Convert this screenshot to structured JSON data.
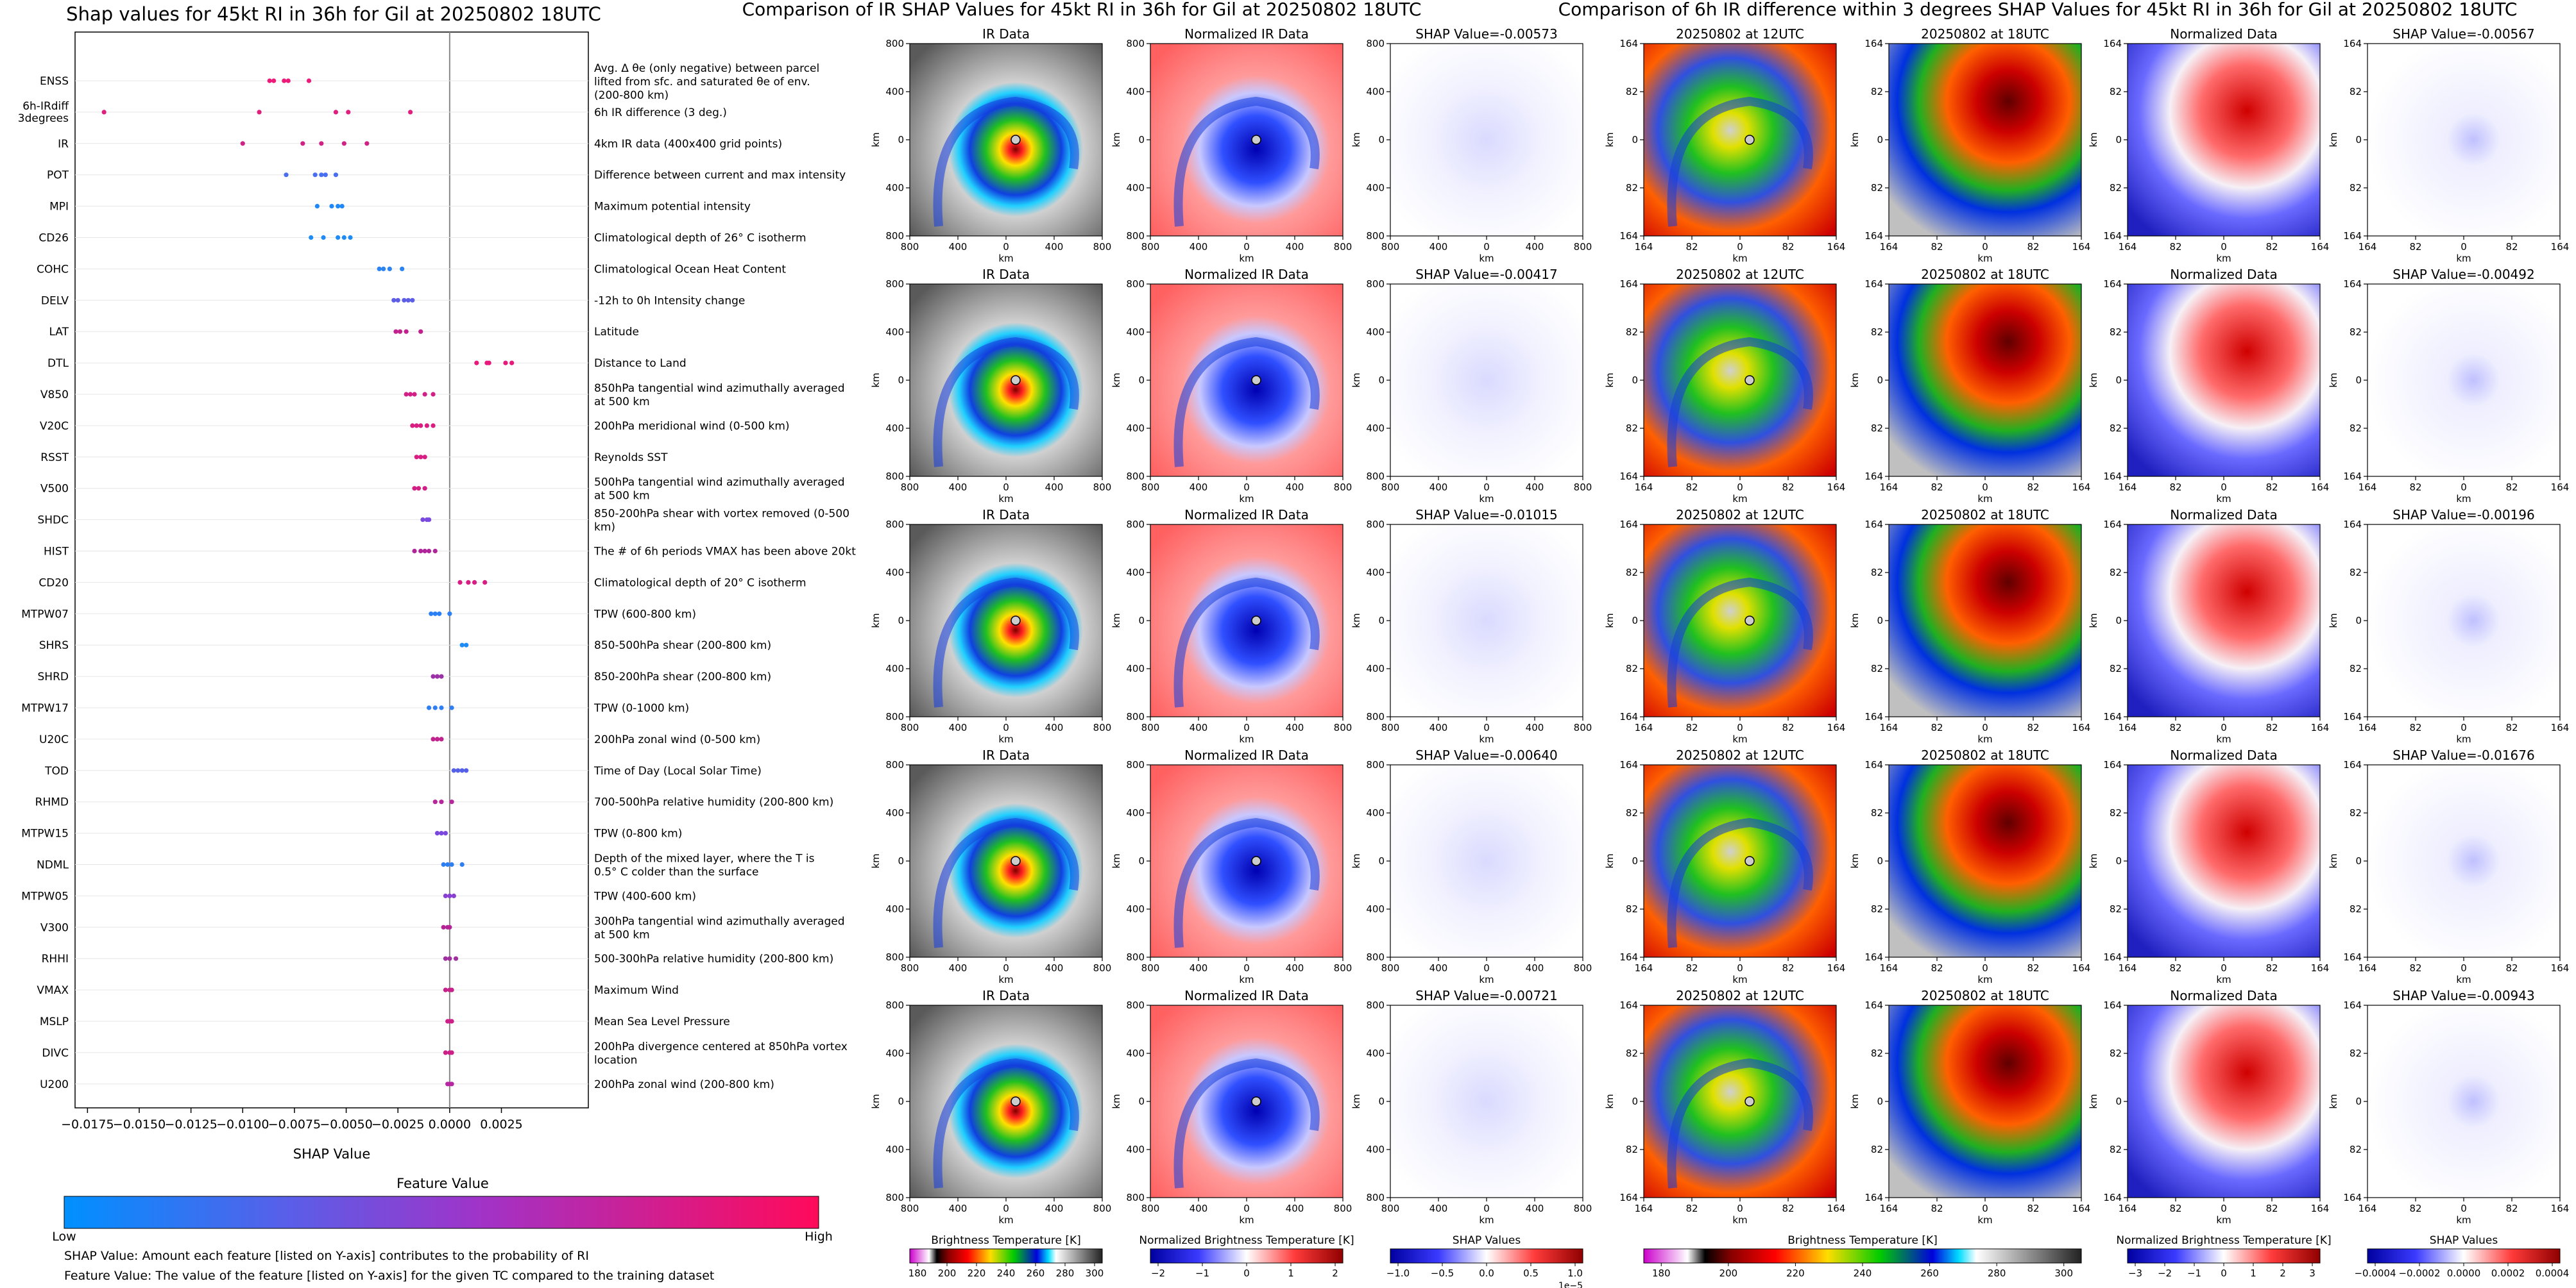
{
  "left_chart": {
    "title": "Shap values for 45kt RI in 36h for Gil at 20250802 18UTC",
    "xlabel": "SHAP Value",
    "feature_names": [
      "ENSS",
      "6h-IRdiff 3degrees",
      "IR",
      "POT",
      "MPI",
      "CD26",
      "COHC",
      "DELV",
      "LAT",
      "DTL",
      "V850",
      "V20C",
      "RSST",
      "V500",
      "SHDC",
      "HIST",
      "CD20",
      "MTPW07",
      "SHRS",
      "SHRD",
      "MTPW17",
      "U20C",
      "TOD",
      "RHMD",
      "MTPW15",
      "NDML",
      "MTPW05",
      "V300",
      "RHHI",
      "VMAX",
      "MSLP",
      "DIVC",
      "U200"
    ],
    "feature_descriptions": [
      "Avg. Δ θe (only negative) between parcel lifted from sfc. and saturated θe of env. (200-800 km)",
      "6h IR difference (3 deg.)",
      "4km IR data (400x400 grid points)",
      "Difference between current and max intensity",
      "Maximum potential intensity",
      "Climatological depth of 26° C isotherm",
      "Climatological Ocean Heat Content",
      "-12h to 0h Intensity change",
      "Latitude",
      "Distance to Land",
      "850hPa tangential wind azimuthally averaged at 500 km",
      "200hPa meridional wind (0-500 km)",
      "Reynolds SST",
      "500hPa tangential wind azimuthally averaged at 500 km",
      "850-200hPa shear with vortex removed (0-500 km)",
      "The # of 6h periods VMAX has been above 20kt",
      "Climatological depth of 20° C isotherm",
      "TPW (600-800 km)",
      "850-500hPa shear (200-800 km)",
      "850-200hPa shear (200-800 km)",
      "TPW (0-1000 km)",
      "200hPa zonal wind (0-500 km)",
      "Time of Day (Local Solar Time)",
      "700-500hPa relative humidity (200-800 km)",
      "TPW (0-800 km)",
      "Depth of the mixed layer, where the T is 0.5° C colder than the surface",
      "TPW (400-600 km)",
      "300hPa tangential wind azimuthally averaged at 500 km",
      "500-300hPa relative humidity (200-800 km)",
      "Maximum Wind",
      "Mean Sea Level Pressure",
      "200hPa divergence centered at 850hPa vortex location",
      "200hPa zonal wind (200-800 km)"
    ],
    "x_ticks": [
      "−0.0175",
      "−0.0150",
      "−0.0125",
      "−0.0100",
      "−0.0075",
      "−0.0050",
      "−0.0025",
      "0.0000",
      "0.0025"
    ],
    "legend_title": "Feature Value",
    "legend_low": "Low",
    "legend_high": "High",
    "footnote_1": "SHAP Value: Amount each feature [listed on Y-axis] contributes to the probability of RI",
    "footnote_2": "Feature Value: The value of the feature [listed on Y-axis] for the given TC compared to the training dataset"
  },
  "middle_panel": {
    "suptitle": "Comparison of IR SHAP Values for 45kt RI in 36h for Gil at 20250802 18UTC",
    "col_titles": [
      "IR Data",
      "Normalized IR Data"
    ],
    "shap_titles": [
      "SHAP Value=-0.00573",
      "SHAP Value=-0.00417",
      "SHAP Value=-0.01015",
      "SHAP Value=-0.00640",
      "SHAP Value=-0.00721"
    ],
    "axis_label": "km",
    "y_ticks": [
      "800",
      "400",
      "0",
      "400",
      "800"
    ],
    "x_ticks": [
      "800",
      "400",
      "0",
      "400",
      "800"
    ],
    "cb1_label": "Brightness Temperature [K]",
    "cb1_ticks": [
      "180",
      "200",
      "220",
      "240",
      "260",
      "280",
      "300"
    ],
    "cb2_label": "Normalized Brightness Temperature [K]",
    "cb2_ticks": [
      "−2",
      "−1",
      "0",
      "1",
      "2"
    ],
    "cb3_label": "SHAP Values",
    "cb3_ticks": [
      "−1.0",
      "−0.5",
      "0.0",
      "0.5",
      "1.0"
    ],
    "cb3_exponent": "1e−5"
  },
  "right_panel": {
    "suptitle": "Comparison of 6h IR difference within 3 degrees SHAP Values for 45kt RI in 36h for Gil at 20250802 18UTC",
    "col_titles": [
      "20250802 at 12UTC",
      "20250802 at 18UTC",
      "Normalized Data"
    ],
    "shap_titles": [
      "SHAP Value=-0.00567",
      "SHAP Value=-0.00492",
      "SHAP Value=-0.00196",
      "SHAP Value=-0.01676",
      "SHAP Value=-0.00943"
    ],
    "axis_label": "km",
    "y_ticks": [
      "164",
      "82",
      "0",
      "82",
      "164"
    ],
    "x_ticks": [
      "164",
      "82",
      "0",
      "82",
      "164"
    ],
    "cb1_label": "Brightness Temperature [K]",
    "cb1_ticks": [
      "180",
      "200",
      "220",
      "240",
      "260",
      "280",
      "300"
    ],
    "cb2_label": "Normalized Brightness Temperature [K]",
    "cb2_ticks": [
      "−3",
      "−2",
      "−1",
      "0",
      "1",
      "2",
      "3"
    ],
    "cb3_label": "SHAP Values",
    "cb3_ticks": [
      "−0.0004",
      "−0.0002",
      "0.0000",
      "0.0002",
      "0.0004"
    ]
  },
  "chart_data": [
    {
      "type": "scatter",
      "title": "Shap values for 45kt RI in 36h for Gil at 20250802 18UTC",
      "xlabel": "SHAP Value",
      "xlim": [
        -0.0181,
        0.0067
      ],
      "grid": false,
      "legend": "colorbar below plot",
      "series": [
        {
          "feature": "ENSS",
          "x": [
            -0.0087,
            -0.0085,
            -0.008,
            -0.0078,
            -0.0068
          ],
          "color": "#ee1a7a"
        },
        {
          "feature": "6h-IRdiff 3degrees",
          "x": [
            -0.0167,
            -0.0092,
            -0.0055,
            -0.0049,
            -0.0019
          ],
          "color": "#e0207f"
        },
        {
          "feature": "IR",
          "x": [
            -0.01,
            -0.0071,
            -0.0062,
            -0.0051,
            -0.004
          ],
          "color": "#cf2285"
        },
        {
          "feature": "POT",
          "x": [
            -0.0079,
            -0.0065,
            -0.0062,
            -0.006,
            -0.0055
          ],
          "color": "#4a6ef0"
        },
        {
          "feature": "MPI",
          "x": [
            -0.0064,
            -0.0057,
            -0.0054,
            -0.0052
          ],
          "color": "#1e88f6"
        },
        {
          "feature": "CD26",
          "x": [
            -0.0067,
            -0.0061,
            -0.0054,
            -0.0051,
            -0.0048
          ],
          "color": "#1e8cf5"
        },
        {
          "feature": "COHC",
          "x": [
            -0.0034,
            -0.0032,
            -0.0029,
            -0.0023
          ],
          "color": "#2b84f2"
        },
        {
          "feature": "DELV",
          "x": [
            -0.0027,
            -0.0025,
            -0.0022,
            -0.002,
            -0.0018
          ],
          "color": "#5d5ee6"
        },
        {
          "feature": "LAT",
          "x": [
            -0.0026,
            -0.0024,
            -0.0021,
            -0.0014
          ],
          "color": "#c2208c"
        },
        {
          "feature": "DTL",
          "x": [
            0.0013,
            0.0018,
            0.0019,
            0.0027,
            0.003
          ],
          "color": "#e71a7c"
        },
        {
          "feature": "V850",
          "x": [
            -0.0021,
            -0.0019,
            -0.0017,
            -0.0012,
            -0.0008
          ],
          "color": "#d21f86"
        },
        {
          "feature": "V20C",
          "x": [
            -0.0018,
            -0.0016,
            -0.0014,
            -0.0011,
            -0.0008
          ],
          "color": "#d91d82"
        },
        {
          "feature": "RSST",
          "x": [
            -0.0016,
            -0.0014,
            -0.0012
          ],
          "color": "#d81d83"
        },
        {
          "feature": "V500",
          "x": [
            -0.0017,
            -0.0015,
            -0.0012
          ],
          "color": "#d21f86"
        },
        {
          "feature": "SHDC",
          "x": [
            -0.0013,
            -0.0011,
            -0.001
          ],
          "color": "#7a4ae0"
        },
        {
          "feature": "HIST",
          "x": [
            -0.0017,
            -0.0014,
            -0.0012,
            -0.001,
            -0.0007
          ],
          "color": "#b0269a"
        },
        {
          "feature": "CD20",
          "x": [
            0.0005,
            0.0009,
            0.0012,
            0.0017
          ],
          "color": "#d91d82"
        },
        {
          "feature": "MTPW07",
          "x": [
            -0.0009,
            -0.0007,
            -0.0005,
            0.0
          ],
          "color": "#2a80f4"
        },
        {
          "feature": "SHRS",
          "x": [
            0.0006,
            0.0008
          ],
          "color": "#1e8cf6"
        },
        {
          "feature": "SHRD",
          "x": [
            -0.0008,
            -0.0006,
            -0.0004
          ],
          "color": "#9a32a6"
        },
        {
          "feature": "MTPW17",
          "x": [
            -0.001,
            -0.0007,
            -0.0004,
            0.0001
          ],
          "color": "#2f7ef2"
        },
        {
          "feature": "U20C",
          "x": [
            -0.0008,
            -0.0006,
            -0.0004
          ],
          "color": "#c0238d"
        },
        {
          "feature": "TOD",
          "x": [
            0.0002,
            0.0004,
            0.0006,
            0.0008
          ],
          "color": "#5560e8"
        },
        {
          "feature": "RHMD",
          "x": [
            -0.0007,
            -0.0004,
            0.0001
          ],
          "color": "#b7269b"
        },
        {
          "feature": "MTPW15",
          "x": [
            -0.0006,
            -0.0004,
            -0.0002
          ],
          "color": "#7b48de"
        },
        {
          "feature": "NDML",
          "x": [
            -0.0003,
            -0.0001,
            0.0001,
            0.0006
          ],
          "color": "#2e7ff2"
        },
        {
          "feature": "MTPW05",
          "x": [
            -0.0002,
            0.0,
            0.0002
          ],
          "color": "#8a40d2"
        },
        {
          "feature": "V300",
          "x": [
            -0.0003,
            -0.0001,
            0.0
          ],
          "color": "#b42497"
        },
        {
          "feature": "RHHI",
          "x": [
            -0.0002,
            0.0,
            0.0003
          ],
          "color": "#a0309f"
        },
        {
          "feature": "VMAX",
          "x": [
            -0.0002,
            0.0,
            0.0001
          ],
          "color": "#c7218a"
        },
        {
          "feature": "MSLP",
          "x": [
            -0.0001,
            0.0,
            0.0001
          ],
          "color": "#cc2088"
        },
        {
          "feature": "DIVC",
          "x": [
            -0.0002,
            0.0,
            0.0001
          ],
          "color": "#cc2088"
        },
        {
          "feature": "U200",
          "x": [
            -0.0001,
            0.0,
            0.0001
          ],
          "color": "#b626a0"
        }
      ]
    }
  ]
}
